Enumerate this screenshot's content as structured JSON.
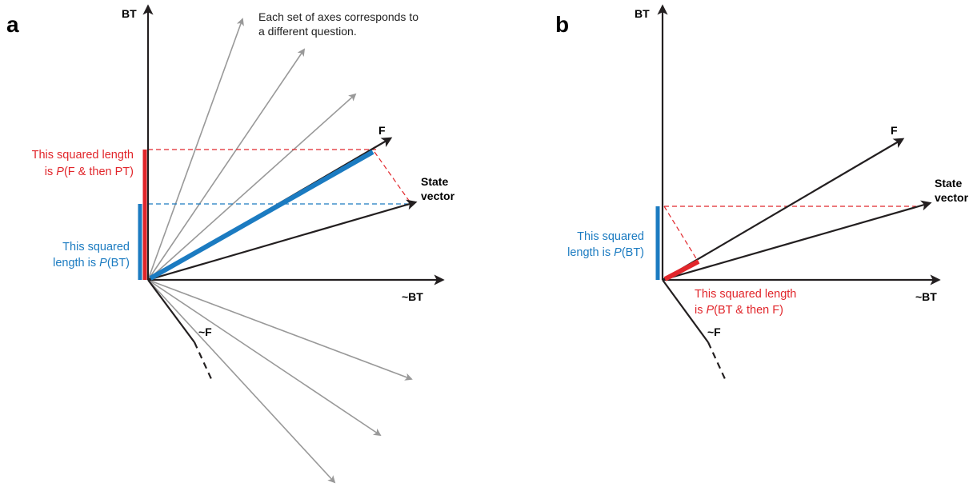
{
  "panel_a": {
    "letter": "a",
    "axis_bt": "BT",
    "axis_not_bt": "~BT",
    "axis_f": "F",
    "axis_not_f": "~F",
    "state_vector_line1": "State",
    "state_vector_line2": "vector",
    "note_line1": "Each set of axes corresponds to",
    "note_line2": "a different question.",
    "red_label_line1": "This squared length",
    "red_label_line2_pre": "is ",
    "red_label_line2_p": "P",
    "red_label_line2_post": "(F & then PT)",
    "blue_label_line1": "This squared",
    "blue_label_line2_pre": "length is ",
    "blue_label_line2_p": "P",
    "blue_label_line2_post": "(BT)"
  },
  "panel_b": {
    "letter": "b",
    "axis_bt": "BT",
    "axis_not_bt": "~BT",
    "axis_f": "F",
    "axis_not_f": "~F",
    "state_vector_line1": "State",
    "state_vector_line2": "vector",
    "blue_label_line1": "This squared",
    "blue_label_line2_pre": "length is ",
    "blue_label_line2_p": "P",
    "blue_label_line2_post": "(BT)",
    "red_label_line1": "This squared length",
    "red_label_line2_pre": "is ",
    "red_label_line2_p": "P",
    "red_label_line2_post": "(BT & then F)"
  },
  "colors": {
    "red": "#e1262b",
    "blue": "#1b7bc1",
    "gray": "#999999",
    "black": "#231f20"
  }
}
